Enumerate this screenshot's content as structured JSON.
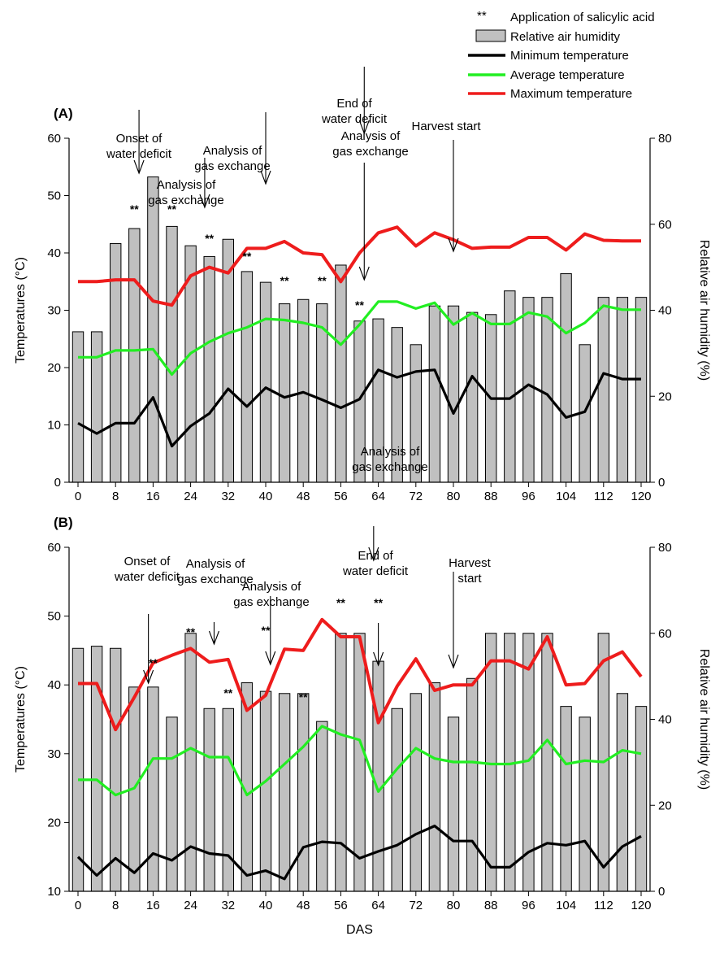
{
  "legend": {
    "stars_marker": "**",
    "stars_label": "Application of salicylic acid",
    "humidity": "Relative air humidity",
    "min_temp": "Minimum temperature",
    "avg_temp": "Average temperature",
    "max_temp": "Maximum temperature"
  },
  "colors": {
    "bars": "#c0c0c0",
    "min": "#000000",
    "avg": "#22ee22",
    "max": "#ee1c1c"
  },
  "chart_data": [
    {
      "type": "bar",
      "panel_label": "(A)",
      "xlabel": "",
      "ylabel": "Temperatures (°C)",
      "y2label": "Relative air humidity (%)",
      "ylim": [
        0,
        60
      ],
      "y_ticks": [
        0,
        10,
        20,
        30,
        40,
        50,
        60
      ],
      "y2lim": [
        0,
        80
      ],
      "y2_ticks": [
        0,
        20,
        40,
        60,
        80
      ],
      "x_ticks": [
        0,
        8,
        16,
        24,
        32,
        40,
        48,
        56,
        64,
        72,
        80,
        88,
        96,
        104,
        112,
        120
      ],
      "x": [
        0,
        4,
        8,
        12,
        16,
        20,
        24,
        28,
        32,
        36,
        40,
        44,
        48,
        52,
        56,
        60,
        64,
        68,
        72,
        76,
        80,
        84,
        88,
        92,
        96,
        100,
        104,
        108,
        112,
        116,
        120
      ],
      "series": [
        {
          "name": "Relative air humidity",
          "axis": "right",
          "kind": "bar",
          "values": [
            35,
            35,
            55.5,
            59,
            71,
            59.5,
            55,
            52.5,
            56.5,
            49,
            46.5,
            41.5,
            42.5,
            41.5,
            50.5,
            37.5,
            38,
            36,
            32,
            41,
            41,
            39.5,
            39,
            44.5,
            43,
            43,
            48.5,
            32,
            43,
            43,
            43
          ]
        },
        {
          "name": "Minimum temperature",
          "axis": "left",
          "kind": "line",
          "values": [
            10.3,
            8.5,
            10.3,
            10.3,
            14.8,
            6.3,
            9.8,
            12,
            16.3,
            13.2,
            16.5,
            14.8,
            15.7,
            14.4,
            13,
            14.5,
            19.6,
            18.3,
            19.3,
            19.6,
            12,
            18.5,
            14.6,
            14.6,
            17,
            15.3,
            11.3,
            12.3,
            19,
            18,
            18
          ]
        },
        {
          "name": "Average temperature",
          "axis": "left",
          "kind": "line",
          "values": [
            21.8,
            21.8,
            23,
            23,
            23.2,
            18.8,
            22.5,
            24.5,
            26,
            27,
            28.5,
            28.3,
            27.8,
            27,
            24,
            27.5,
            31.5,
            31.5,
            30.3,
            31.3,
            27.5,
            29.5,
            27.6,
            27.6,
            29.6,
            28.9,
            26,
            27.8,
            30.8,
            30.1,
            30.1
          ]
        },
        {
          "name": "Maximum temperature",
          "axis": "left",
          "kind": "line",
          "values": [
            35,
            35,
            35.3,
            35.3,
            31.6,
            30.9,
            36,
            37.5,
            36.5,
            40.8,
            40.8,
            42,
            40,
            39.7,
            35,
            40,
            43.5,
            44.5,
            41.2,
            43.5,
            42.3,
            40.8,
            41,
            41,
            42.7,
            42.7,
            40.5,
            43.3,
            42.2,
            42.1,
            42.1
          ]
        }
      ],
      "annotations": [
        {
          "text": "Onset of\nwater deficit",
          "x": 13
        },
        {
          "text": "Analysis of\ngas exchange",
          "x": 27
        },
        {
          "text": "Analysis of\ngas exchange",
          "x": 40
        },
        {
          "text": "End of\nwater deficit",
          "x": 61
        },
        {
          "text": "Analysis of\ngas exchange",
          "x": 61
        },
        {
          "text": "Harvest start",
          "x": 80
        }
      ],
      "salicylic_marks_x": [
        12,
        20,
        28,
        36,
        44,
        52,
        60
      ]
    },
    {
      "type": "bar",
      "panel_label": "(B)",
      "xlabel": "DAS",
      "ylabel": "Temperatures (°C)",
      "y2label": "Relative air humidity (%)",
      "ylim": [
        10,
        60
      ],
      "y_ticks": [
        10,
        20,
        30,
        40,
        50,
        60
      ],
      "y2lim": [
        0,
        80
      ],
      "y2_ticks": [
        0,
        20,
        40,
        60,
        80
      ],
      "x_ticks": [
        0,
        8,
        16,
        24,
        32,
        40,
        48,
        56,
        64,
        72,
        80,
        88,
        96,
        104,
        112,
        120
      ],
      "x": [
        0,
        4,
        8,
        12,
        16,
        20,
        24,
        28,
        32,
        36,
        40,
        44,
        48,
        52,
        56,
        60,
        64,
        68,
        72,
        76,
        80,
        84,
        88,
        92,
        96,
        100,
        104,
        108,
        112,
        116,
        120
      ],
      "series": [
        {
          "name": "Relative air humidity",
          "axis": "right",
          "kind": "bar",
          "values": [
            56.5,
            57,
            56.5,
            47.5,
            47.5,
            40.5,
            60,
            42.5,
            42.5,
            48.5,
            46.5,
            46,
            46,
            39.5,
            60,
            60,
            53.5,
            42.5,
            46,
            48.5,
            40.5,
            49.5,
            60,
            60,
            60,
            60,
            43,
            40.5,
            60,
            46,
            43
          ]
        },
        {
          "name": "Minimum temperature",
          "axis": "left",
          "kind": "line",
          "values": [
            15,
            12.3,
            14.8,
            12.7,
            15.5,
            14.5,
            16.5,
            15.5,
            15.2,
            12.3,
            13,
            11.8,
            16.4,
            17.2,
            17,
            14.8,
            15.8,
            16.7,
            18.3,
            19.5,
            17.3,
            17.3,
            13.5,
            13.5,
            15.7,
            17,
            16.7,
            17.3,
            13.5,
            16.5,
            18
          ]
        },
        {
          "name": "Average temperature",
          "axis": "left",
          "kind": "line",
          "values": [
            26.2,
            26.2,
            24,
            25,
            29.3,
            29.3,
            30.8,
            29.5,
            29.5,
            24,
            26,
            28.5,
            31,
            34,
            32.8,
            32,
            24.5,
            27.8,
            30.8,
            29.3,
            28.8,
            28.8,
            28.5,
            28.5,
            29,
            32,
            28.5,
            29,
            28.8,
            30.5,
            30
          ]
        },
        {
          "name": "Maximum temperature",
          "axis": "left",
          "kind": "line",
          "values": [
            40.2,
            40.2,
            33.5,
            38.2,
            43.2,
            44.3,
            45.3,
            43.3,
            43.7,
            36.3,
            38.5,
            45.2,
            45,
            49.5,
            47,
            47,
            34.5,
            39.8,
            43.8,
            39.2,
            40,
            40,
            43.5,
            43.5,
            42.3,
            47,
            40,
            40.2,
            43.5,
            44.8,
            41.2
          ]
        }
      ],
      "annotations": [
        {
          "text": "Onset of\nwater deficit",
          "x": 15
        },
        {
          "text": "Analysis of\ngas exchange",
          "x": 29
        },
        {
          "text": "Analysis of\ngas exchange",
          "x": 41
        },
        {
          "text": "End of\nwater deficit",
          "x": 63
        },
        {
          "text": "Analysis of\ngas exchange",
          "x": 64
        },
        {
          "text": "Harvest\nstart",
          "x": 80
        }
      ],
      "salicylic_marks_x": [
        16,
        24,
        32,
        40,
        48,
        56,
        64
      ]
    }
  ]
}
